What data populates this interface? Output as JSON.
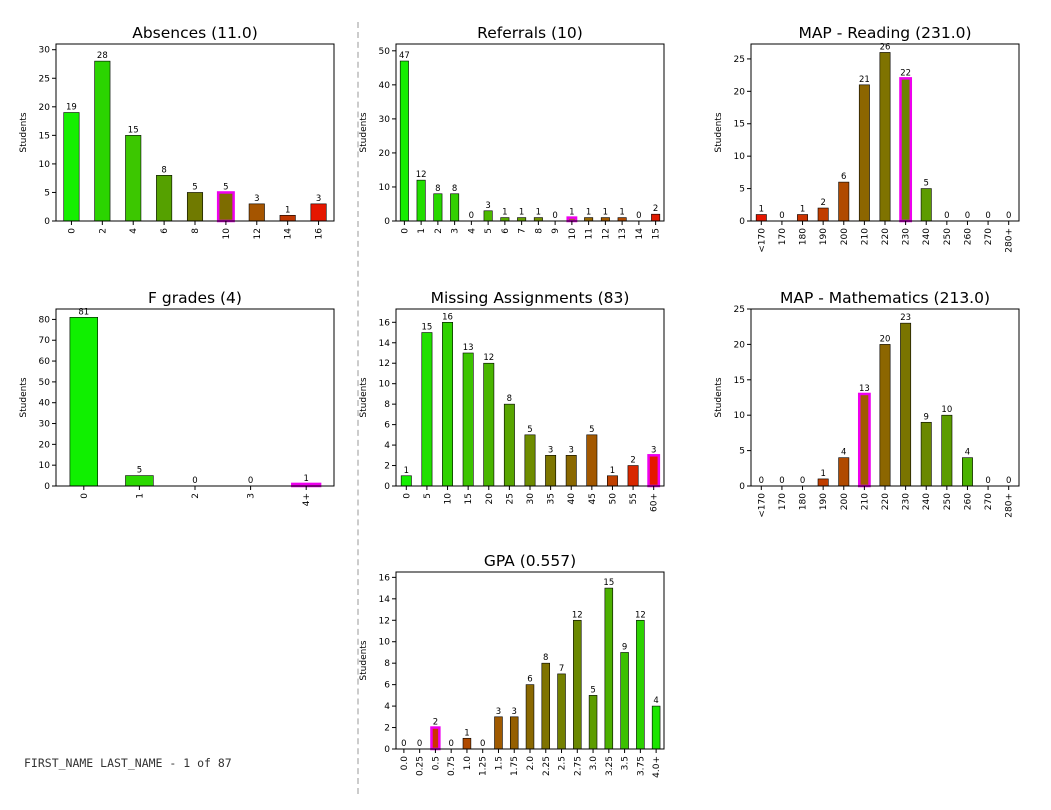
{
  "footer": {
    "student_label": "FIRST_NAME LAST_NAME - 1 of 87"
  },
  "colors": {
    "highlight_outline": "#ee00ee",
    "axis": "#000000",
    "label_text": "#000000"
  },
  "chart_data": [
    {
      "id": "absences",
      "type": "bar",
      "title": "Absences (11.0)",
      "ylabel": "Students",
      "ylim": [
        0,
        31
      ],
      "yticks": [
        0,
        5,
        10,
        15,
        20,
        25,
        30
      ],
      "categories": [
        "0",
        "2",
        "4",
        "6",
        "8",
        "10",
        "12",
        "14",
        "16"
      ],
      "values": [
        19,
        28,
        15,
        8,
        5,
        5,
        3,
        1,
        3
      ],
      "colors": [
        "#15ef00",
        "#2bd400",
        "#3cc700",
        "#55a100",
        "#707a00",
        "#7d6c00",
        "#a55500",
        "#c03600",
        "#e51700"
      ],
      "highlight_index": 5
    },
    {
      "id": "referrals",
      "type": "bar",
      "title": "Referrals (10)",
      "ylabel": "Students",
      "ylim": [
        0,
        52
      ],
      "yticks": [
        0,
        10,
        20,
        30,
        40,
        50
      ],
      "categories": [
        "0",
        "1",
        "2",
        "3",
        "4",
        "5",
        "6",
        "7",
        "8",
        "9",
        "10",
        "11",
        "12",
        "13",
        "14",
        "15"
      ],
      "values": [
        47,
        12,
        8,
        8,
        0,
        3,
        1,
        1,
        1,
        0,
        1,
        1,
        1,
        1,
        0,
        2
      ],
      "colors": [
        "#15ef00",
        "#22de00",
        "#28d800",
        "#32d000",
        "#3cc700",
        "#4dba00",
        "#58ac00",
        "#65a000",
        "#739200",
        "#7f8400",
        "#8b7600",
        "#976800",
        "#a35a00",
        "#b04a00",
        "#c83800",
        "#e01a00"
      ],
      "highlight_index": 10
    },
    {
      "id": "map_reading",
      "type": "bar",
      "title": "MAP - Reading (231.0)",
      "ylabel": "Students",
      "ylim": [
        0,
        27.3
      ],
      "yticks": [
        0,
        5,
        10,
        15,
        20,
        25
      ],
      "categories": [
        "<170",
        "170",
        "180",
        "190",
        "200",
        "210",
        "220",
        "230",
        "240",
        "250",
        "260",
        "270",
        "280+"
      ],
      "values": [
        1,
        0,
        1,
        2,
        6,
        21,
        26,
        22,
        5,
        0,
        0,
        0,
        0
      ],
      "colors": [
        "#e51700",
        "#d82800",
        "#cc3300",
        "#c03e00",
        "#b04a00",
        "#8c6600",
        "#7f7300",
        "#6e8200",
        "#5d9c00",
        "#4cb000",
        "#3cc100",
        "#2cd200",
        "#1ce500"
      ],
      "highlight_index": 7
    },
    {
      "id": "f_grades",
      "type": "bar",
      "title": "F grades (4)",
      "ylabel": "Students",
      "ylim": [
        0,
        85
      ],
      "yticks": [
        0,
        10,
        20,
        30,
        40,
        50,
        60,
        70,
        80
      ],
      "categories": [
        "0",
        "1",
        "2",
        "3",
        "4+"
      ],
      "values": [
        81,
        5,
        0,
        0,
        1
      ],
      "colors": [
        "#10f000",
        "#2bd800",
        "#55a800",
        "#808000",
        "#e51700"
      ],
      "highlight_index": 4
    },
    {
      "id": "missing_assignments",
      "type": "bar",
      "title": "Missing Assignments (83)",
      "ylabel": "Students",
      "ylim": [
        0,
        17.3
      ],
      "yticks": [
        0,
        2,
        4,
        6,
        8,
        10,
        12,
        14,
        16
      ],
      "categories": [
        "0",
        "5",
        "10",
        "15",
        "20",
        "25",
        "30",
        "35",
        "40",
        "45",
        "50",
        "55",
        "60+"
      ],
      "values": [
        1,
        15,
        16,
        13,
        12,
        8,
        5,
        3,
        3,
        5,
        1,
        2,
        3
      ],
      "colors": [
        "#15ef00",
        "#22e000",
        "#2fd200",
        "#3cc400",
        "#49b500",
        "#58a500",
        "#6e8c00",
        "#7d7600",
        "#8a6800",
        "#a35800",
        "#c04000",
        "#d82800",
        "#e51700"
      ],
      "highlight_index": 12
    },
    {
      "id": "map_mathematics",
      "type": "bar",
      "title": "MAP - Mathematics (213.0)",
      "ylabel": "Students",
      "ylim": [
        0,
        25
      ],
      "yticks": [
        0,
        5,
        10,
        15,
        20,
        25
      ],
      "categories": [
        "<170",
        "170",
        "180",
        "190",
        "200",
        "210",
        "220",
        "230",
        "240",
        "250",
        "260",
        "270",
        "280+"
      ],
      "values": [
        0,
        0,
        0,
        1,
        4,
        13,
        20,
        23,
        9,
        10,
        4,
        0,
        0
      ],
      "colors": [
        "#e51700",
        "#d82800",
        "#cc3300",
        "#c03e00",
        "#b04a00",
        "#a05a00",
        "#8c6600",
        "#7a7400",
        "#6a8800",
        "#5c9c00",
        "#4bb200",
        "#3bc400",
        "#2ad600"
      ],
      "highlight_index": 5
    },
    {
      "id": "gpa",
      "type": "bar",
      "title": "GPA (0.557)",
      "ylabel": "Students",
      "ylim": [
        0,
        16.5
      ],
      "yticks": [
        0,
        2,
        4,
        6,
        8,
        10,
        12,
        14,
        16
      ],
      "categories": [
        "0.0",
        "0.25",
        "0.5",
        "0.75",
        "1.0",
        "1.25",
        "1.5",
        "1.75",
        "2.0",
        "2.25",
        "2.5",
        "2.75",
        "3.0",
        "3.25",
        "3.5",
        "3.75",
        "4.0+"
      ],
      "values": [
        0,
        0,
        2,
        0,
        1,
        0,
        3,
        3,
        6,
        8,
        7,
        12,
        5,
        15,
        9,
        12,
        4
      ],
      "colors": [
        "#e51700",
        "#d82800",
        "#cc3300",
        "#c03e00",
        "#b04a00",
        "#a85200",
        "#a05a00",
        "#955f00",
        "#8a6800",
        "#7f7300",
        "#738000",
        "#6a8800",
        "#5c9c00",
        "#4cb000",
        "#3cc100",
        "#2cd200",
        "#1ce500"
      ],
      "highlight_index": 2
    }
  ]
}
